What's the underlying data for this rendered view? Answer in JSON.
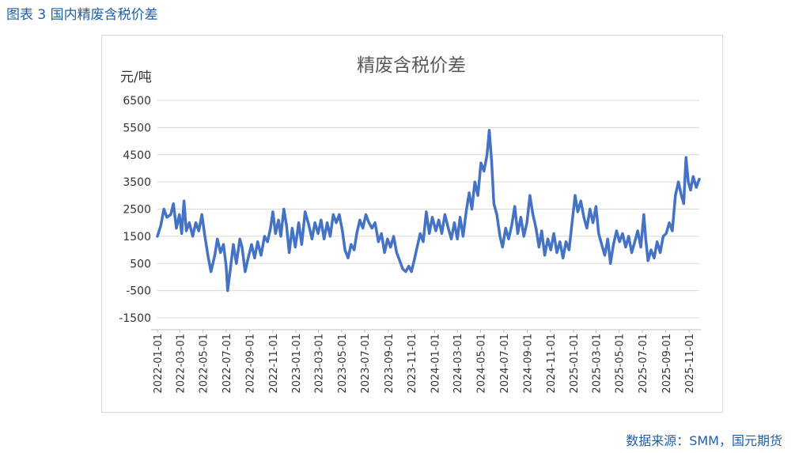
{
  "caption": "图表 3 国内精废含税价差",
  "source": "数据来源：SMM，国元期货",
  "chart_data": {
    "type": "line",
    "title": "精废含税价差",
    "ylabel": "元/吨",
    "xlabel": "",
    "ylim": [
      -1500,
      6500
    ],
    "yticks": [
      -1500,
      -500,
      500,
      1500,
      2500,
      3500,
      4500,
      5500,
      6500
    ],
    "xlim": [
      "2022-01-01",
      "2025-11-28"
    ],
    "xticks": [
      "2022-01-01",
      "2022-03-01",
      "2022-05-01",
      "2022-07-01",
      "2022-09-01",
      "2022-11-01",
      "2023-01-01",
      "2023-03-01",
      "2023-05-01",
      "2023-07-01",
      "2023-09-01",
      "2023-11-01",
      "2024-01-01",
      "2024-03-01",
      "2024-05-01",
      "2024-07-01",
      "2024-09-01",
      "2024-11-01",
      "2025-01-01",
      "2025-03-01",
      "2025-05-01",
      "2025-07-01",
      "2025-09-01",
      "2025-11-01"
    ],
    "grid": true,
    "line_color": "#4472c4",
    "series": [
      {
        "name": "",
        "points": [
          [
            "2022-01-01",
            1500
          ],
          [
            "2022-01-10",
            1900
          ],
          [
            "2022-01-18",
            2500
          ],
          [
            "2022-01-26",
            2200
          ],
          [
            "2022-02-05",
            2300
          ],
          [
            "2022-02-12",
            2700
          ],
          [
            "2022-02-20",
            1800
          ],
          [
            "2022-02-28",
            2300
          ],
          [
            "2022-03-06",
            1600
          ],
          [
            "2022-03-12",
            2800
          ],
          [
            "2022-03-18",
            1700
          ],
          [
            "2022-03-26",
            2000
          ],
          [
            "2022-04-04",
            1500
          ],
          [
            "2022-04-12",
            2000
          ],
          [
            "2022-04-20",
            1700
          ],
          [
            "2022-04-28",
            2300
          ],
          [
            "2022-05-06",
            1500
          ],
          [
            "2022-05-14",
            800
          ],
          [
            "2022-05-22",
            200
          ],
          [
            "2022-06-01",
            800
          ],
          [
            "2022-06-08",
            1400
          ],
          [
            "2022-06-16",
            900
          ],
          [
            "2022-06-24",
            1200
          ],
          [
            "2022-07-01",
            400
          ],
          [
            "2022-07-05",
            -500
          ],
          [
            "2022-07-12",
            300
          ],
          [
            "2022-07-20",
            1200
          ],
          [
            "2022-07-28",
            500
          ],
          [
            "2022-08-06",
            1400
          ],
          [
            "2022-08-12",
            1100
          ],
          [
            "2022-08-20",
            200
          ],
          [
            "2022-08-28",
            700
          ],
          [
            "2022-09-06",
            1200
          ],
          [
            "2022-09-14",
            700
          ],
          [
            "2022-09-22",
            1300
          ],
          [
            "2022-10-01",
            800
          ],
          [
            "2022-10-10",
            1500
          ],
          [
            "2022-10-18",
            1300
          ],
          [
            "2022-10-26",
            1800
          ],
          [
            "2022-11-01",
            2400
          ],
          [
            "2022-11-08",
            1600
          ],
          [
            "2022-11-16",
            2100
          ],
          [
            "2022-11-22",
            1500
          ],
          [
            "2022-11-30",
            2500
          ],
          [
            "2022-12-07",
            1900
          ],
          [
            "2022-12-14",
            900
          ],
          [
            "2022-12-22",
            1800
          ],
          [
            "2022-12-30",
            1100
          ],
          [
            "2023-01-08",
            2000
          ],
          [
            "2023-01-16",
            1200
          ],
          [
            "2023-01-25",
            2400
          ],
          [
            "2023-02-04",
            1900
          ],
          [
            "2023-02-12",
            1400
          ],
          [
            "2023-02-20",
            2000
          ],
          [
            "2023-02-28",
            1600
          ],
          [
            "2023-03-08",
            2100
          ],
          [
            "2023-03-16",
            1400
          ],
          [
            "2023-03-24",
            2000
          ],
          [
            "2023-04-01",
            1500
          ],
          [
            "2023-04-09",
            2300
          ],
          [
            "2023-04-17",
            2000
          ],
          [
            "2023-04-25",
            2300
          ],
          [
            "2023-05-03",
            1700
          ],
          [
            "2023-05-10",
            1000
          ],
          [
            "2023-05-18",
            700
          ],
          [
            "2023-05-26",
            1200
          ],
          [
            "2023-06-03",
            1000
          ],
          [
            "2023-06-10",
            1600
          ],
          [
            "2023-06-18",
            2100
          ],
          [
            "2023-06-26",
            1800
          ],
          [
            "2023-07-04",
            2300
          ],
          [
            "2023-07-12",
            2000
          ],
          [
            "2023-07-20",
            1800
          ],
          [
            "2023-07-28",
            2000
          ],
          [
            "2023-08-06",
            1300
          ],
          [
            "2023-08-14",
            1600
          ],
          [
            "2023-08-22",
            900
          ],
          [
            "2023-08-30",
            1400
          ],
          [
            "2023-09-07",
            1100
          ],
          [
            "2023-09-15",
            1500
          ],
          [
            "2023-09-23",
            900
          ],
          [
            "2023-10-01",
            600
          ],
          [
            "2023-10-09",
            300
          ],
          [
            "2023-10-17",
            200
          ],
          [
            "2023-10-25",
            400
          ],
          [
            "2023-11-01",
            200
          ],
          [
            "2023-11-08",
            600
          ],
          [
            "2023-11-16",
            1100
          ],
          [
            "2023-11-24",
            1600
          ],
          [
            "2023-12-02",
            1300
          ],
          [
            "2023-12-10",
            2400
          ],
          [
            "2023-12-18",
            1600
          ],
          [
            "2023-12-26",
            2200
          ],
          [
            "2024-01-04",
            1700
          ],
          [
            "2024-01-12",
            2100
          ],
          [
            "2024-01-20",
            1600
          ],
          [
            "2024-01-28",
            2300
          ],
          [
            "2024-02-06",
            1800
          ],
          [
            "2024-02-14",
            1400
          ],
          [
            "2024-02-22",
            2000
          ],
          [
            "2024-03-01",
            1400
          ],
          [
            "2024-03-08",
            2200
          ],
          [
            "2024-03-16",
            1500
          ],
          [
            "2024-03-24",
            2400
          ],
          [
            "2024-04-01",
            3100
          ],
          [
            "2024-04-08",
            2500
          ],
          [
            "2024-04-16",
            3500
          ],
          [
            "2024-04-24",
            3000
          ],
          [
            "2024-05-02",
            4200
          ],
          [
            "2024-05-10",
            3900
          ],
          [
            "2024-05-18",
            4500
          ],
          [
            "2024-05-24",
            5400
          ],
          [
            "2024-05-30",
            4300
          ],
          [
            "2024-06-05",
            2700
          ],
          [
            "2024-06-13",
            2300
          ],
          [
            "2024-06-21",
            1500
          ],
          [
            "2024-06-28",
            1100
          ],
          [
            "2024-07-06",
            1800
          ],
          [
            "2024-07-14",
            1400
          ],
          [
            "2024-07-22",
            1900
          ],
          [
            "2024-07-30",
            2600
          ],
          [
            "2024-08-07",
            1600
          ],
          [
            "2024-08-15",
            2200
          ],
          [
            "2024-08-23",
            1500
          ],
          [
            "2024-08-31",
            2000
          ],
          [
            "2024-09-08",
            3000
          ],
          [
            "2024-09-16",
            2300
          ],
          [
            "2024-09-24",
            1800
          ],
          [
            "2024-10-02",
            1100
          ],
          [
            "2024-10-09",
            1700
          ],
          [
            "2024-10-17",
            800
          ],
          [
            "2024-10-25",
            1400
          ],
          [
            "2024-11-02",
            1000
          ],
          [
            "2024-11-10",
            1600
          ],
          [
            "2024-11-18",
            900
          ],
          [
            "2024-11-26",
            1300
          ],
          [
            "2024-12-04",
            700
          ],
          [
            "2024-12-12",
            1300
          ],
          [
            "2024-12-20",
            1000
          ],
          [
            "2024-12-28",
            2000
          ],
          [
            "2025-01-05",
            3000
          ],
          [
            "2025-01-12",
            2400
          ],
          [
            "2025-01-20",
            2800
          ],
          [
            "2025-01-28",
            2200
          ],
          [
            "2025-02-05",
            1800
          ],
          [
            "2025-02-13",
            2500
          ],
          [
            "2025-02-21",
            2000
          ],
          [
            "2025-03-01",
            2600
          ],
          [
            "2025-03-08",
            1600
          ],
          [
            "2025-03-16",
            1200
          ],
          [
            "2025-03-24",
            800
          ],
          [
            "2025-04-01",
            1400
          ],
          [
            "2025-04-08",
            500
          ],
          [
            "2025-04-16",
            1200
          ],
          [
            "2025-04-24",
            1700
          ],
          [
            "2025-05-02",
            1300
          ],
          [
            "2025-05-10",
            1600
          ],
          [
            "2025-05-18",
            1100
          ],
          [
            "2025-05-26",
            1500
          ],
          [
            "2025-06-03",
            900
          ],
          [
            "2025-06-11",
            1300
          ],
          [
            "2025-06-19",
            1700
          ],
          [
            "2025-06-27",
            1100
          ],
          [
            "2025-07-05",
            2300
          ],
          [
            "2025-07-10",
            1400
          ],
          [
            "2025-07-16",
            600
          ],
          [
            "2025-07-24",
            1000
          ],
          [
            "2025-08-01",
            700
          ],
          [
            "2025-08-09",
            1300
          ],
          [
            "2025-08-17",
            900
          ],
          [
            "2025-08-25",
            1500
          ],
          [
            "2025-09-02",
            1600
          ],
          [
            "2025-09-10",
            2000
          ],
          [
            "2025-09-18",
            1700
          ],
          [
            "2025-09-26",
            3000
          ],
          [
            "2025-10-04",
            3500
          ],
          [
            "2025-10-12",
            3000
          ],
          [
            "2025-10-18",
            2700
          ],
          [
            "2025-10-24",
            4400
          ],
          [
            "2025-10-30",
            3500
          ],
          [
            "2025-11-05",
            3200
          ],
          [
            "2025-11-12",
            3700
          ],
          [
            "2025-11-20",
            3300
          ],
          [
            "2025-11-28",
            3600
          ]
        ]
      }
    ]
  }
}
